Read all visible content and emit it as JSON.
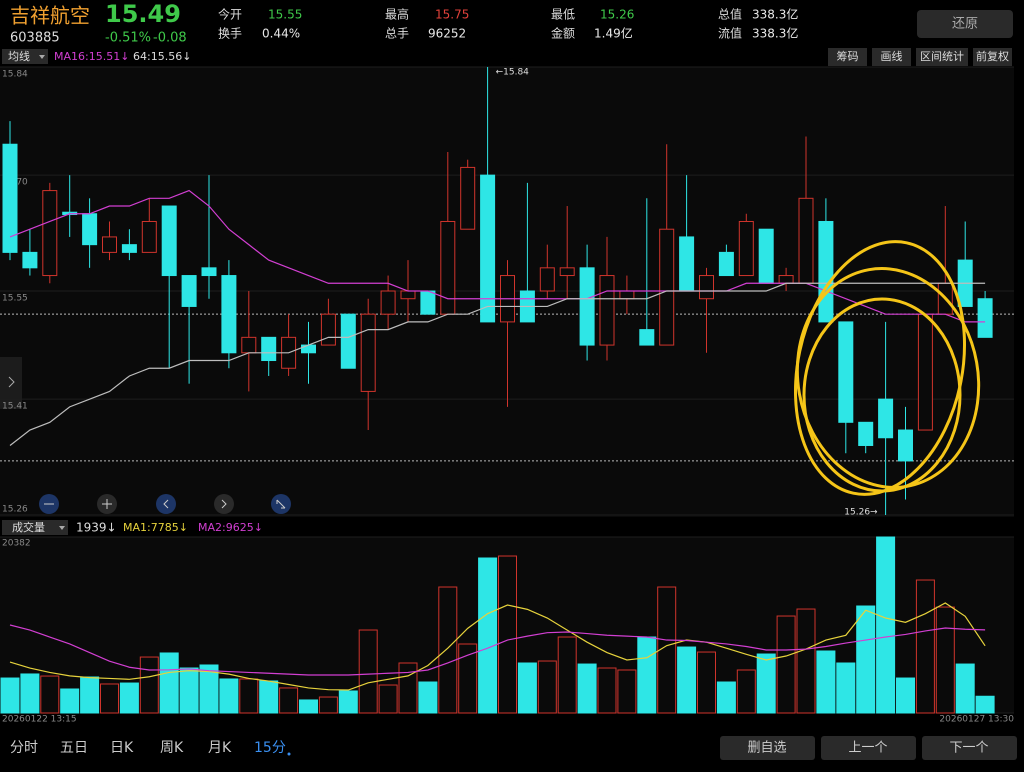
{
  "header": {
    "name": "吉祥航空",
    "price": "15.49",
    "code": "603885",
    "change_pct": "-0.51%",
    "change": "-0.08",
    "fields": [
      {
        "label": "今开",
        "value": "15.55",
        "color": "#3fc94a"
      },
      {
        "label": "换手",
        "value": "0.44%",
        "color": "#e8e8e8"
      },
      {
        "label": "最高",
        "value": "15.75",
        "color": "#e0413a"
      },
      {
        "label": "总手",
        "value": "96252",
        "color": "#e8e8e8"
      },
      {
        "label": "最低",
        "value": "15.26",
        "color": "#3fc94a"
      },
      {
        "label": "金额",
        "value": "1.49亿",
        "color": "#e8e8e8"
      },
      {
        "label": "总值",
        "value": "338.3亿",
        "color": "#e8e8e8"
      },
      {
        "label": "流值",
        "value": "338.3亿",
        "color": "#e8e8e8"
      }
    ],
    "restore_button": "还原"
  },
  "toolbar": {
    "selector": "均线",
    "buttons": [
      "筹码",
      "画线",
      "区间统计",
      "前复权"
    ]
  },
  "chart_data": [
    {
      "type": "candlestick",
      "up_color": "#d0342c",
      "down_color": "#2ee6e6",
      "ylim": [
        15.26,
        15.84
      ],
      "yticks": [
        15.84,
        {
          "value": 15.7,
          "label": "15.70"
        },
        15.55,
        15.41,
        15.26
      ],
      "open": [
        15.74,
        15.6,
        15.57,
        15.652,
        15.65,
        15.6,
        15.61,
        15.6,
        15.66,
        15.57,
        15.58,
        15.57,
        15.47,
        15.49,
        15.45,
        15.48,
        15.48,
        15.52,
        15.42,
        15.52,
        15.54,
        15.55,
        15.52,
        15.63,
        15.7,
        15.51,
        15.55,
        15.55,
        15.57,
        15.58,
        15.48,
        15.54,
        15.5,
        15.48,
        15.62,
        15.54,
        15.6,
        15.57,
        15.63,
        15.56,
        15.56,
        15.64,
        15.51,
        15.38,
        15.41,
        15.37,
        15.37,
        15.52,
        15.59,
        15.54
      ],
      "high": [
        15.77,
        15.63,
        15.69,
        15.7,
        15.67,
        15.64,
        15.63,
        15.67,
        15.66,
        15.57,
        15.7,
        15.59,
        15.55,
        15.49,
        15.52,
        15.51,
        15.54,
        15.52,
        15.54,
        15.57,
        15.59,
        15.55,
        15.73,
        15.72,
        15.84,
        15.59,
        15.69,
        15.61,
        15.66,
        15.61,
        15.62,
        15.57,
        15.67,
        15.74,
        15.7,
        15.58,
        15.61,
        15.65,
        15.63,
        15.58,
        15.75,
        15.67,
        15.51,
        15.38,
        15.51,
        15.4,
        15.52,
        15.66,
        15.64,
        15.55
      ],
      "low": [
        15.59,
        15.57,
        15.56,
        15.62,
        15.58,
        15.59,
        15.59,
        15.6,
        15.45,
        15.43,
        15.54,
        15.45,
        15.42,
        15.44,
        15.44,
        15.43,
        15.48,
        15.45,
        15.37,
        15.5,
        15.51,
        15.52,
        15.52,
        15.63,
        15.51,
        15.4,
        15.51,
        15.54,
        15.54,
        15.46,
        15.46,
        15.52,
        15.48,
        15.48,
        15.55,
        15.47,
        15.57,
        15.57,
        15.56,
        15.55,
        15.56,
        15.51,
        15.34,
        15.34,
        15.26,
        15.28,
        15.37,
        15.52,
        15.53,
        15.49
      ],
      "close": [
        15.6,
        15.58,
        15.68,
        15.649,
        15.61,
        15.62,
        15.6,
        15.64,
        15.57,
        15.53,
        15.57,
        15.47,
        15.49,
        15.46,
        15.49,
        15.47,
        15.52,
        15.45,
        15.52,
        15.55,
        15.55,
        15.52,
        15.64,
        15.71,
        15.51,
        15.57,
        15.51,
        15.58,
        15.58,
        15.48,
        15.57,
        15.55,
        15.48,
        15.63,
        15.55,
        15.57,
        15.57,
        15.64,
        15.56,
        15.57,
        15.67,
        15.51,
        15.38,
        15.35,
        15.36,
        15.33,
        15.52,
        15.56,
        15.53,
        15.49
      ],
      "series": [
        {
          "name": "MA16:15.51↓",
          "color": "#d23fd2",
          "values": [
            15.62,
            15.63,
            15.64,
            15.65,
            15.65,
            15.66,
            15.66,
            15.67,
            15.67,
            15.68,
            15.66,
            15.63,
            15.61,
            15.59,
            15.58,
            15.57,
            15.56,
            15.56,
            15.56,
            15.56,
            15.55,
            15.55,
            15.54,
            15.54,
            15.54,
            15.54,
            15.54,
            15.54,
            15.54,
            15.54,
            15.55,
            15.55,
            15.55,
            15.55,
            15.55,
            15.55,
            15.55,
            15.56,
            15.56,
            15.56,
            15.56,
            15.55,
            15.54,
            15.53,
            15.52,
            15.52,
            15.52,
            15.52,
            15.51,
            15.51
          ]
        },
        {
          "name": "64:15.56↓",
          "color": "#bdbdbd",
          "values": [
            15.35,
            15.37,
            15.38,
            15.4,
            15.41,
            15.42,
            15.44,
            15.45,
            15.45,
            15.46,
            15.46,
            15.46,
            15.47,
            15.47,
            15.47,
            15.48,
            15.49,
            15.49,
            15.5,
            15.5,
            15.51,
            15.51,
            15.52,
            15.52,
            15.53,
            15.53,
            15.53,
            15.53,
            15.54,
            15.54,
            15.54,
            15.54,
            15.54,
            15.55,
            15.55,
            15.55,
            15.55,
            15.55,
            15.55,
            15.56,
            15.56,
            15.56,
            15.56,
            15.56,
            15.56,
            15.56,
            15.56,
            15.56,
            15.56,
            15.56
          ]
        }
      ],
      "reference_lines": [
        15.52,
        15.33
      ],
      "high_label": "←15.84",
      "low_label": "15.26→"
    },
    {
      "type": "bar",
      "selector": "成交量",
      "current_label": "1939↓",
      "ylim": [
        0,
        20382
      ],
      "yticks": [
        0,
        20382
      ],
      "values": [
        4050,
        4520,
        4280,
        2780,
        4170,
        3360,
        3470,
        6480,
        6950,
        5210,
        5560,
        3940,
        3940,
        3710,
        2900,
        1510,
        1850,
        2550,
        9610,
        3240,
        5790,
        3590,
        14590,
        7990,
        17950,
        18180,
        5790,
        6020,
        8800,
        5670,
        5210,
        4980,
        8800,
        14590,
        7640,
        7060,
        3590,
        4980,
        6830,
        11230,
        12040,
        7180,
        5790,
        12390,
        20382,
        4050,
        15400,
        12270,
        5670,
        1939
      ],
      "series": [
        {
          "name": "MA1:7785↓",
          "color": "#e6d23c",
          "values": [
            5900,
            5200,
            4700,
            4300,
            4100,
            4000,
            3900,
            4200,
            4700,
            4900,
            4800,
            4500,
            4000,
            3700,
            3300,
            2900,
            2700,
            2660,
            3500,
            3900,
            4300,
            5500,
            7500,
            9800,
            11500,
            12500,
            12000,
            11000,
            9600,
            8200,
            7000,
            6140,
            6400,
            7800,
            8450,
            8200,
            7500,
            6800,
            6140,
            6600,
            7400,
            8450,
            9000,
            11900,
            11000,
            10500,
            11500,
            12740,
            11200,
            7785
          ]
        },
        {
          "name": "MA2:9625↓",
          "color": "#d23fd2",
          "values": [
            10190,
            9600,
            8800,
            8000,
            7000,
            6000,
            5300,
            4980,
            5000,
            5100,
            4900,
            4800,
            4700,
            4600,
            4500,
            4400,
            4400,
            4400,
            4500,
            4600,
            4700,
            4980,
            5800,
            6700,
            7500,
            8450,
            8900,
            9300,
            9380,
            9200,
            9000,
            8900,
            8800,
            8450,
            8400,
            8200,
            8000,
            7700,
            7300,
            7300,
            7400,
            7700,
            8100,
            8450,
            8800,
            9100,
            9500,
            9840,
            9700,
            9625
          ]
        }
      ],
      "x_labels": [
        "20260122 13:15",
        "20260127 13:30"
      ]
    }
  ],
  "tabs": {
    "items": [
      "分时",
      "五日",
      "日K",
      "周K",
      "月K",
      "15分"
    ],
    "active": 5
  },
  "footer_buttons": [
    "删自选",
    "上一个",
    "下一个"
  ]
}
